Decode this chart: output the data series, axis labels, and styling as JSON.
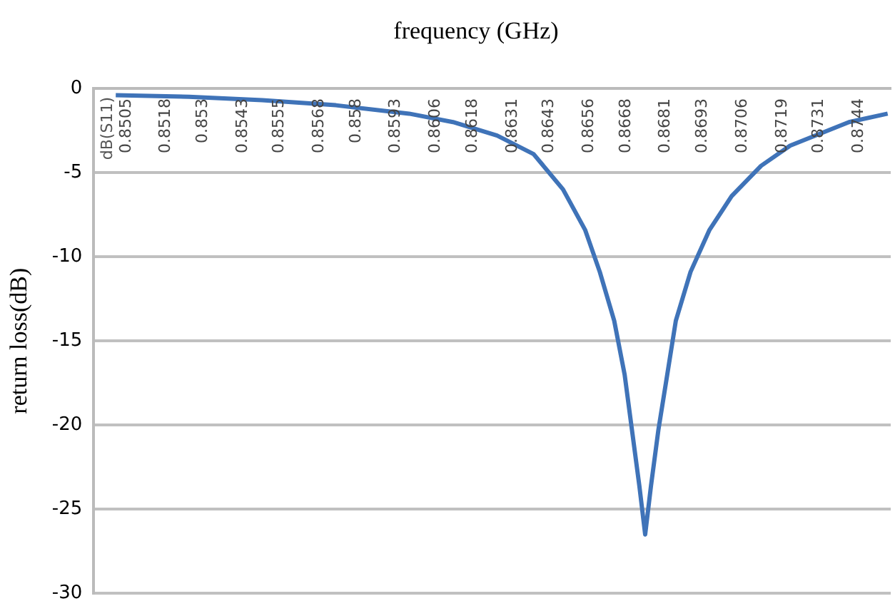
{
  "chart_data": {
    "type": "line",
    "xlabel": "frequency (GHz)",
    "ylabel": "return loss(dB)",
    "annotations": [
      "dB(S11)"
    ],
    "x": [
      0.85002,
      0.85241,
      0.8548,
      0.8572,
      0.85959,
      0.86102,
      0.86246,
      0.86365,
      0.86461,
      0.86533,
      0.86581,
      0.86628,
      0.86662,
      0.86686,
      0.8671,
      0.86729,
      0.86748,
      0.86772,
      0.86801,
      0.86829,
      0.86877,
      0.86939,
      0.87011,
      0.87107,
      0.87202,
      0.87298,
      0.87394,
      0.8752
    ],
    "series": [
      {
        "color": "#3f73b8",
        "values": [
          -0.4,
          -0.5,
          -0.7,
          -1.0,
          -1.5,
          -2.0,
          -2.8,
          -3.9,
          -6.0,
          -8.4,
          -10.9,
          -13.8,
          -17,
          -20.3,
          -23.6,
          -26.5,
          -23.6,
          -20.3,
          -17,
          -13.8,
          -10.9,
          -8.4,
          -6.4,
          -4.6,
          -3.4,
          -2.7,
          -2.0,
          -1.5
        ]
      }
    ],
    "xlim": [
      0.8493,
      0.8753
    ],
    "xticks": [
      0.8505,
      0.8518,
      0.853,
      0.8543,
      0.8555,
      0.8568,
      0.858,
      0.8593,
      0.8606,
      0.8618,
      0.8631,
      0.8643,
      0.8656,
      0.8668,
      0.8681,
      0.8693,
      0.8706,
      0.8719,
      0.8731,
      0.8744
    ],
    "ylim": [
      -30,
      0
    ],
    "yticks": [
      0,
      -5,
      -10,
      -15,
      -20,
      -25,
      -30
    ],
    "grid": "y",
    "legend": false,
    "marker": "none",
    "line_style": "solid"
  }
}
